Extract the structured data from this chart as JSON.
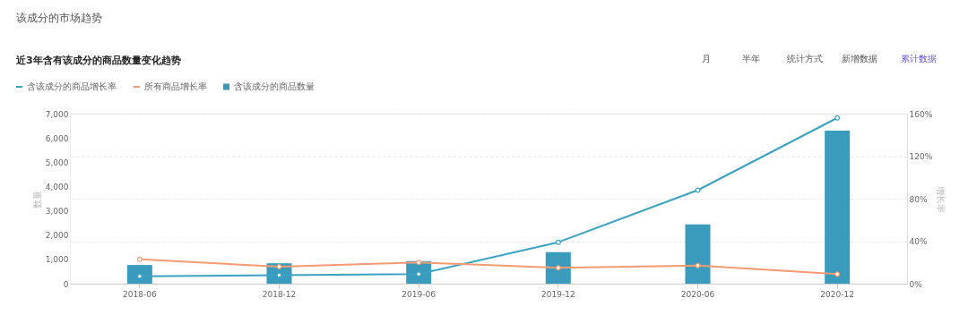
{
  "chart_data": {
    "type": "bar",
    "title": "近3年含有该成分的商品数量变化趋势",
    "categories": [
      "2018-06",
      "2018-12",
      "2019-06",
      "2019-12",
      "2020-06",
      "2020-12"
    ],
    "series": [
      {
        "name": "含该成分的商品增长率",
        "type": "line",
        "axis": "y2",
        "color": "#3aa2c2",
        "values": [
          7,
          8,
          9,
          39,
          88,
          156
        ]
      },
      {
        "name": "所有商品增长率",
        "type": "line",
        "axis": "y2",
        "color": "#f59b71",
        "values": [
          23,
          16,
          20,
          15,
          17,
          9
        ]
      },
      {
        "name": "含该成分的商品数量",
        "color": "#3b9bbd",
        "values": [
          770,
          840,
          930,
          1300,
          2440,
          6300
        ]
      }
    ],
    "ylabel": "数量",
    "y2label": "增长率",
    "ylim": [
      0,
      7000
    ],
    "yticks": [
      0,
      {
        "value": 1000,
        "label": "1,000"
      },
      {
        "value": 2000,
        "label": "2,000"
      },
      {
        "value": 3000,
        "label": "3,000"
      },
      {
        "value": 4000,
        "label": "4,000"
      },
      {
        "value": 5000,
        "label": "5,000"
      },
      {
        "value": 6000,
        "label": "6,000"
      },
      {
        "value": 7000,
        "label": "7,000"
      }
    ],
    "y2lim": [
      0,
      160
    ],
    "y2ticks": [
      {
        "value": 0,
        "label": "0%"
      },
      {
        "value": 40,
        "label": "40%"
      },
      {
        "value": 80,
        "label": "80%"
      },
      {
        "value": 120,
        "label": "120%"
      },
      {
        "value": 160,
        "label": "160%"
      }
    ],
    "grid": true,
    "legend": "top left",
    "marker": "circle",
    "line_style": "solid",
    "annotations": [
      "该成分的市场趋势",
      "月",
      "半年",
      "统计方式",
      "新增数据",
      "累计数据"
    ]
  }
}
